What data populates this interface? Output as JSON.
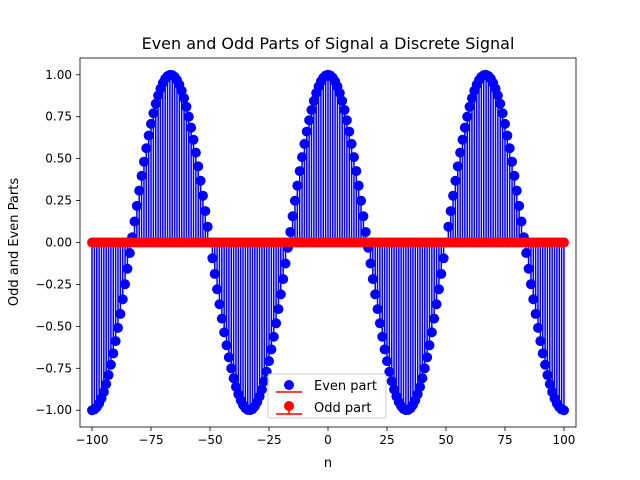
{
  "chart_data": {
    "type": "stem",
    "title": "Even and Odd Parts of Signal a Discrete Signal",
    "xlabel": "n",
    "ylabel": "Odd and Even Parts",
    "xlim": [
      -105.1,
      105.1
    ],
    "ylim": [
      -1.1,
      1.1
    ],
    "x_ticks": [
      -100,
      -75,
      -50,
      -25,
      0,
      25,
      50,
      75,
      100
    ],
    "y_ticks": [
      -1.0,
      -0.75,
      -0.5,
      -0.25,
      0.0,
      0.25,
      0.5,
      0.75,
      1.0
    ],
    "x_tick_labels": [
      "−100",
      "−75",
      "−50",
      "−25",
      "0",
      "25",
      "50",
      "75",
      "100"
    ],
    "y_tick_labels": [
      "−1.00",
      "−0.75",
      "−0.50",
      "−0.25",
      "0.00",
      "0.25",
      "0.50",
      "0.75",
      "1.00"
    ],
    "grid": false,
    "legend_position": "lower-center",
    "series": [
      {
        "name": "Even part",
        "color": "#0000ff",
        "baseline_color": "#ff0000",
        "formula": "cos(2*pi*n*0.015)",
        "n_range": [
          -100,
          100
        ]
      },
      {
        "name": "Odd part",
        "color": "#ff0000",
        "baseline_color": "#ff0000",
        "formula": "0",
        "n_range": [
          -100,
          100
        ]
      }
    ]
  }
}
